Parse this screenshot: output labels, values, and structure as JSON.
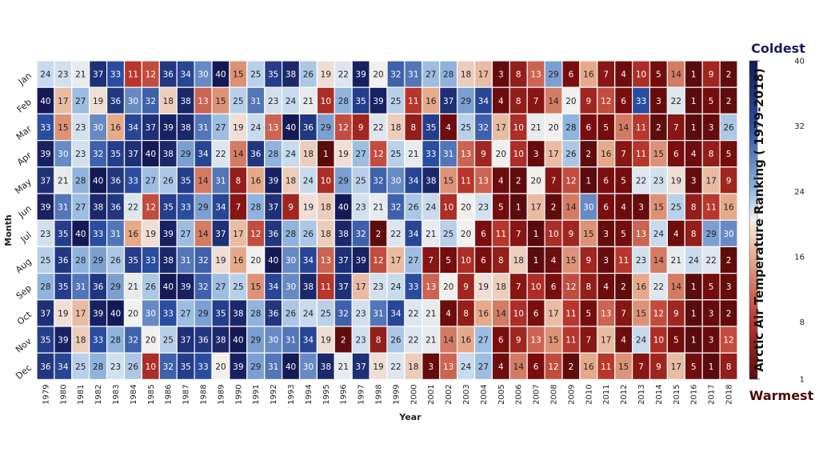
{
  "chart_data": {
    "type": "heatmap",
    "title": "",
    "xlabel": "Year",
    "ylabel": "Month",
    "years": [
      "1979",
      "1980",
      "1981",
      "1982",
      "1983",
      "1984",
      "1985",
      "1986",
      "1987",
      "1988",
      "1989",
      "1990",
      "1991",
      "1992",
      "1993",
      "1994",
      "1995",
      "1996",
      "1997",
      "1998",
      "1999",
      "2000",
      "2001",
      "2002",
      "2003",
      "2004",
      "2005",
      "2006",
      "2007",
      "2008",
      "2009",
      "2010",
      "2011",
      "2012",
      "2013",
      "2014",
      "2015",
      "2016",
      "2017",
      "2018"
    ],
    "months": [
      "Jan",
      "Feb",
      "Mar",
      "Apr",
      "May",
      "Jun",
      "Jul",
      "Aug",
      "Sep",
      "Oct",
      "Nov",
      "Dec"
    ],
    "values": [
      [
        24,
        23,
        21,
        37,
        33,
        11,
        12,
        36,
        34,
        30,
        40,
        15,
        25,
        35,
        38,
        26,
        19,
        22,
        39,
        20,
        32,
        31,
        27,
        28,
        18,
        17,
        3,
        8,
        13,
        29,
        6,
        16,
        7,
        4,
        10,
        5,
        14,
        1,
        9,
        2
      ],
      [
        40,
        17,
        27,
        19,
        36,
        30,
        32,
        18,
        38,
        13,
        15,
        25,
        31,
        23,
        24,
        21,
        10,
        28,
        35,
        39,
        25,
        11,
        16,
        37,
        29,
        34,
        4,
        8,
        7,
        14,
        20,
        9,
        12,
        6,
        33,
        3,
        22,
        1,
        5,
        2
      ],
      [
        33,
        15,
        23,
        30,
        16,
        34,
        37,
        39,
        38,
        31,
        27,
        19,
        24,
        13,
        40,
        36,
        29,
        12,
        9,
        22,
        18,
        8,
        35,
        4,
        25,
        32,
        17,
        10,
        21,
        20,
        28,
        6,
        5,
        14,
        11,
        2,
        7,
        1,
        3,
        26
      ],
      [
        39,
        30,
        23,
        32,
        35,
        37,
        40,
        38,
        29,
        34,
        22,
        14,
        36,
        28,
        24,
        18,
        1,
        19,
        27,
        12,
        25,
        21,
        33,
        31,
        13,
        9,
        20,
        10,
        3,
        17,
        26,
        2,
        16,
        7,
        11,
        15,
        6,
        4,
        8,
        5
      ],
      [
        37,
        21,
        28,
        40,
        36,
        33,
        27,
        26,
        35,
        14,
        31,
        8,
        16,
        39,
        18,
        24,
        10,
        29,
        25,
        32,
        30,
        34,
        38,
        15,
        11,
        13,
        4,
        2,
        20,
        7,
        12,
        1,
        6,
        5,
        22,
        23,
        19,
        3,
        17,
        9
      ],
      [
        39,
        31,
        27,
        38,
        36,
        22,
        12,
        35,
        33,
        29,
        34,
        7,
        28,
        37,
        9,
        19,
        18,
        40,
        23,
        21,
        32,
        26,
        24,
        10,
        20,
        23,
        5,
        1,
        17,
        2,
        14,
        30,
        6,
        4,
        3,
        15,
        25,
        8,
        11,
        16
      ],
      [
        23,
        35,
        40,
        33,
        31,
        16,
        19,
        39,
        27,
        14,
        37,
        17,
        12,
        36,
        28,
        26,
        18,
        38,
        32,
        2,
        22,
        34,
        21,
        25,
        20,
        6,
        11,
        7,
        1,
        10,
        9,
        15,
        3,
        5,
        13,
        24,
        4,
        8,
        29,
        30
      ],
      [
        25,
        36,
        28,
        29,
        26,
        35,
        33,
        38,
        31,
        32,
        19,
        16,
        20,
        40,
        30,
        34,
        13,
        37,
        39,
        12,
        17,
        27,
        7,
        5,
        10,
        6,
        8,
        18,
        1,
        4,
        15,
        9,
        3,
        11,
        23,
        14,
        21,
        24,
        22,
        2
      ],
      [
        28,
        35,
        31,
        36,
        29,
        21,
        26,
        40,
        39,
        32,
        27,
        25,
        15,
        34,
        30,
        38,
        11,
        37,
        17,
        23,
        24,
        33,
        13,
        20,
        9,
        19,
        18,
        7,
        10,
        6,
        12,
        8,
        4,
        2,
        16,
        22,
        14,
        1,
        5,
        3
      ],
      [
        37,
        19,
        17,
        39,
        40,
        20,
        30,
        33,
        27,
        29,
        35,
        38,
        28,
        36,
        26,
        24,
        25,
        32,
        23,
        31,
        34,
        22,
        21,
        4,
        8,
        16,
        14,
        10,
        6,
        17,
        11,
        5,
        13,
        7,
        15,
        12,
        9,
        1,
        3,
        2
      ],
      [
        35,
        39,
        18,
        33,
        28,
        32,
        20,
        25,
        37,
        36,
        38,
        40,
        29,
        30,
        31,
        34,
        19,
        2,
        23,
        8,
        26,
        22,
        21,
        14,
        16,
        27,
        6,
        9,
        13,
        15,
        11,
        7,
        17,
        4,
        24,
        10,
        5,
        1,
        3,
        12
      ],
      [
        36,
        34,
        25,
        28,
        23,
        26,
        10,
        32,
        35,
        33,
        20,
        39,
        29,
        31,
        40,
        30,
        38,
        21,
        37,
        19,
        22,
        18,
        3,
        13,
        24,
        27,
        4,
        14,
        6,
        12,
        2,
        16,
        11,
        15,
        7,
        9,
        17,
        5,
        1,
        8
      ]
    ],
    "colorbar": {
      "label": "Arctic Air Temperature Ranking ( 1979-2018)",
      "ticks": [
        "1",
        "8",
        "16",
        "24",
        "32",
        "40"
      ],
      "range": [
        1,
        40
      ],
      "top_label": "Coldest",
      "bottom_label": "Warmest",
      "colors": {
        "warm": "#5a0b0b",
        "mid": "#f2f0ee",
        "cold": "#151a56",
        "top_label": "#1c1d5e",
        "bottom_label": "#4a0a0a"
      }
    }
  }
}
